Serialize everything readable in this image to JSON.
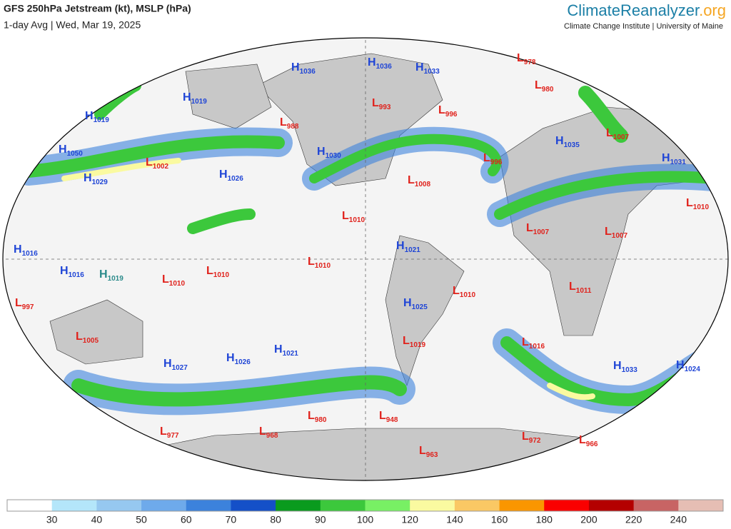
{
  "header": {
    "title": "GFS 250hPa Jetstream (kt), MSLP (hPa)",
    "subtitle": "1-day Avg | Wed, Mar 19, 2025",
    "brand": {
      "part1": "Climate",
      "part2": "Reanalyzer",
      "part3": ".org"
    },
    "tagline": "Climate Change Institute | University of Maine"
  },
  "center_colors": {
    "H": "#1f45d6",
    "L": "#e0221c"
  },
  "centers": [
    {
      "type": "H",
      "pressure": "1036"
    },
    {
      "type": "H",
      "pressure": "1036"
    },
    {
      "type": "H",
      "pressure": "1033"
    },
    {
      "type": "L",
      "pressure": "978"
    },
    {
      "type": "L",
      "pressure": "980"
    },
    {
      "type": "H",
      "pressure": "1019"
    },
    {
      "type": "H",
      "pressure": "1019"
    },
    {
      "type": "L",
      "pressure": "993"
    },
    {
      "type": "L",
      "pressure": "996"
    },
    {
      "type": "L",
      "pressure": "988"
    },
    {
      "type": "L",
      "pressure": "1007"
    },
    {
      "type": "H",
      "pressure": "1035"
    },
    {
      "type": "H",
      "pressure": "1050"
    },
    {
      "type": "H",
      "pressure": "1030"
    },
    {
      "type": "L",
      "pressure": "1002"
    },
    {
      "type": "L",
      "pressure": "996"
    },
    {
      "type": "H",
      "pressure": "1026"
    },
    {
      "type": "H",
      "pressure": "1031"
    },
    {
      "type": "H",
      "pressure": "1029"
    },
    {
      "type": "L",
      "pressure": "1008"
    },
    {
      "type": "L",
      "pressure": "1010"
    },
    {
      "type": "L",
      "pressure": "1010"
    },
    {
      "type": "L",
      "pressure": "1007"
    },
    {
      "type": "L",
      "pressure": "1007"
    },
    {
      "type": "H",
      "pressure": "1021"
    },
    {
      "type": "H",
      "pressure": "1016"
    },
    {
      "type": "H",
      "pressure": "1016"
    },
    {
      "type": "H",
      "pressure": "1019",
      "color": "#2a8a8a"
    },
    {
      "type": "L",
      "pressure": "1010"
    },
    {
      "type": "L",
      "pressure": "1010"
    },
    {
      "type": "L",
      "pressure": "1010"
    },
    {
      "type": "L",
      "pressure": "1010"
    },
    {
      "type": "L",
      "pressure": "1011"
    },
    {
      "type": "L",
      "pressure": "997"
    },
    {
      "type": "H",
      "pressure": "1025"
    },
    {
      "type": "L",
      "pressure": "1005"
    },
    {
      "type": "L",
      "pressure": "1019"
    },
    {
      "type": "L",
      "pressure": "1016"
    },
    {
      "type": "H",
      "pressure": "1021"
    },
    {
      "type": "H",
      "pressure": "1026"
    },
    {
      "type": "H",
      "pressure": "1027"
    },
    {
      "type": "H",
      "pressure": "1033"
    },
    {
      "type": "H",
      "pressure": "1024"
    },
    {
      "type": "L",
      "pressure": "980"
    },
    {
      "type": "L",
      "pressure": "948"
    },
    {
      "type": "L",
      "pressure": "977"
    },
    {
      "type": "L",
      "pressure": "968"
    },
    {
      "type": "L",
      "pressure": "963"
    },
    {
      "type": "L",
      "pressure": "972"
    },
    {
      "type": "L",
      "pressure": "966"
    }
  ],
  "colorbar": {
    "colors": [
      "#ffffff",
      "#b4e6fa",
      "#96c8f0",
      "#6eaaeb",
      "#3c82dc",
      "#1450c8",
      "#0a9b1e",
      "#3cc83c",
      "#78f064",
      "#fafaa0",
      "#fac864",
      "#fa9600",
      "#fa0000",
      "#b40000",
      "#c86464",
      "#e6beb4"
    ],
    "labels": [
      30,
      40,
      50,
      60,
      70,
      80,
      90,
      100,
      120,
      140,
      160,
      180,
      200,
      220,
      240
    ]
  }
}
